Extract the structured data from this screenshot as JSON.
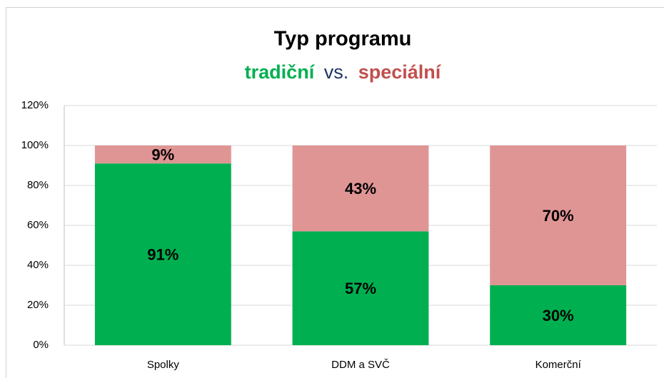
{
  "chart_data": {
    "type": "stacked_bar",
    "title": "Typ programu",
    "subtitle_joiner": "vs.",
    "categories": [
      "Spolky",
      "DDM a SVČ",
      "Komerční"
    ],
    "series": [
      {
        "name": "tradiční",
        "color": "#00b050",
        "values": [
          91,
          57,
          30
        ],
        "value_labels": [
          "91%",
          "57%",
          "30%"
        ]
      },
      {
        "name": "speciální",
        "color": "#e09595",
        "values": [
          9,
          43,
          70
        ],
        "value_labels": [
          "9%",
          "43%",
          "70%"
        ]
      }
    ],
    "ylim": [
      0,
      120
    ],
    "yticks": [
      {
        "value": 0,
        "label": "0%"
      },
      {
        "value": 20,
        "label": "20%"
      },
      {
        "value": 40,
        "label": "40%"
      },
      {
        "value": 60,
        "label": "60%"
      },
      {
        "value": 80,
        "label": "80%"
      },
      {
        "value": 100,
        "label": "100%"
      },
      {
        "value": 120,
        "label": "120%"
      }
    ],
    "grid": true
  }
}
